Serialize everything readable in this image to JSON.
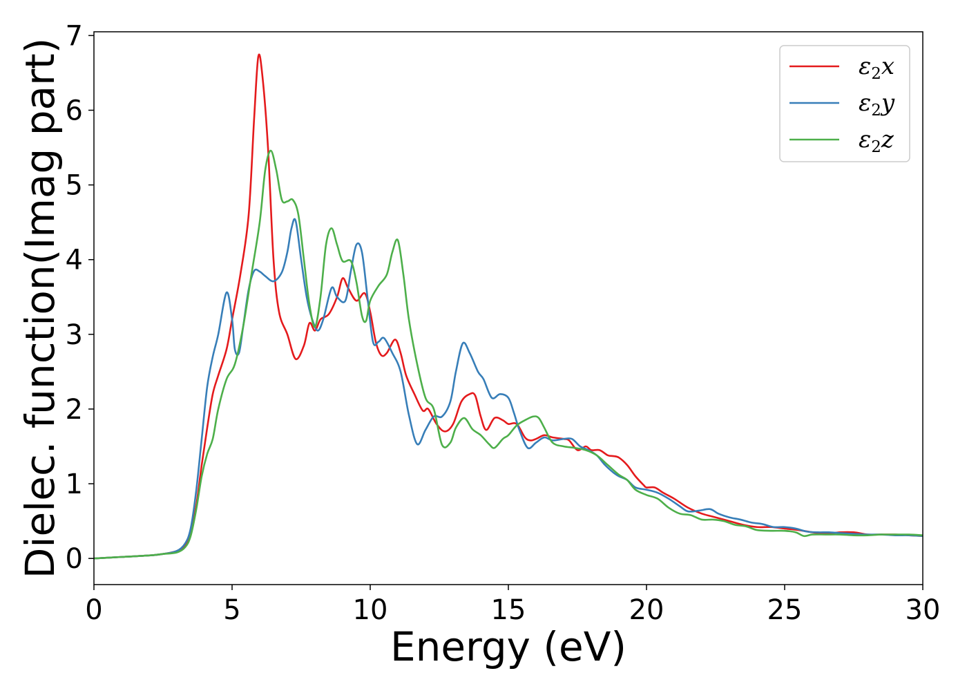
{
  "chart_data": {
    "type": "line",
    "xlabel": "Energy (eV)",
    "ylabel": "Dielec. function(Imag part)",
    "xlim": [
      0,
      30
    ],
    "ylim": [
      -0.35,
      7.05
    ],
    "xticks": [
      0,
      5,
      10,
      15,
      20,
      25,
      30
    ],
    "yticks": [
      0,
      1,
      2,
      3,
      4,
      5,
      6,
      7
    ],
    "grid": false,
    "legend_position": "top-right",
    "series": [
      {
        "name": "ε₂x",
        "legend_base": "ε",
        "legend_sub": "2",
        "legend_tail": "x",
        "color": "#e41a1c",
        "x": [
          0,
          1,
          2,
          2.5,
          3,
          3.3,
          3.5,
          3.7,
          3.9,
          4.1,
          4.3,
          4.5,
          4.8,
          5,
          5.3,
          5.6,
          5.8,
          5.95,
          6.1,
          6.3,
          6.5,
          6.7,
          7,
          7.3,
          7.6,
          7.8,
          8,
          8.2,
          8.5,
          8.8,
          9,
          9.2,
          9.5,
          9.8,
          10,
          10.2,
          10.4,
          10.6,
          10.9,
          11.1,
          11.3,
          11.6,
          11.9,
          12.1,
          12.4,
          12.7,
          13,
          13.3,
          13.6,
          13.8,
          14,
          14.2,
          14.5,
          14.8,
          15,
          15.3,
          15.6,
          15.8,
          16,
          16.3,
          16.6,
          17,
          17.2,
          17.5,
          17.8,
          18,
          18.3,
          18.6,
          18.8,
          19,
          19.3,
          19.6,
          19.9,
          20,
          20.3,
          20.6,
          21,
          21.5,
          22,
          22.5,
          23,
          23.5,
          24,
          24.5,
          25,
          25.5,
          26,
          26.5,
          27,
          27.5,
          28,
          28.5,
          29,
          29.5,
          30
        ],
        "y": [
          0,
          0.02,
          0.04,
          0.06,
          0.1,
          0.18,
          0.35,
          0.7,
          1.25,
          1.75,
          2.2,
          2.45,
          2.8,
          3.2,
          3.8,
          4.6,
          5.9,
          6.72,
          6.45,
          5.5,
          4.0,
          3.3,
          3.0,
          2.67,
          2.85,
          3.15,
          3.05,
          3.2,
          3.27,
          3.5,
          3.75,
          3.62,
          3.45,
          3.55,
          3.3,
          2.9,
          2.72,
          2.75,
          2.93,
          2.75,
          2.45,
          2.2,
          1.98,
          2.0,
          1.8,
          1.7,
          1.8,
          2.1,
          2.2,
          2.18,
          1.9,
          1.72,
          1.88,
          1.85,
          1.8,
          1.8,
          1.62,
          1.58,
          1.6,
          1.65,
          1.62,
          1.6,
          1.58,
          1.45,
          1.5,
          1.45,
          1.45,
          1.38,
          1.37,
          1.35,
          1.25,
          1.1,
          0.98,
          0.95,
          0.95,
          0.88,
          0.8,
          0.68,
          0.6,
          0.55,
          0.5,
          0.45,
          0.42,
          0.42,
          0.4,
          0.38,
          0.35,
          0.33,
          0.35,
          0.35,
          0.32,
          0.32,
          0.32,
          0.31,
          0.3
        ]
      },
      {
        "name": "ε₂y",
        "legend_base": "ε",
        "legend_sub": "2",
        "legend_tail": "y",
        "color": "#377eb8",
        "x": [
          0,
          1,
          2,
          2.5,
          3,
          3.3,
          3.5,
          3.7,
          3.9,
          4.1,
          4.3,
          4.5,
          4.8,
          5,
          5.1,
          5.25,
          5.4,
          5.6,
          5.8,
          6,
          6.2,
          6.5,
          6.8,
          7,
          7.15,
          7.3,
          7.5,
          7.7,
          7.9,
          8.1,
          8.3,
          8.6,
          8.8,
          9.1,
          9.3,
          9.5,
          9.7,
          9.9,
          10.1,
          10.3,
          10.5,
          10.8,
          11.1,
          11.4,
          11.7,
          12,
          12.3,
          12.6,
          12.9,
          13.1,
          13.35,
          13.6,
          13.9,
          14.1,
          14.4,
          14.7,
          15,
          15.2,
          15.4,
          15.7,
          16,
          16.3,
          16.6,
          17,
          17.3,
          17.6,
          17.9,
          18.2,
          18.5,
          18.8,
          19,
          19.3,
          19.6,
          20,
          20.4,
          20.8,
          21.2,
          21.5,
          21.9,
          22.3,
          22.6,
          23,
          23.4,
          23.8,
          24.2,
          24.6,
          25,
          25.4,
          25.8,
          26.2,
          26.6,
          27,
          27.5,
          28,
          28.5,
          29,
          29.5,
          30
        ],
        "y": [
          0,
          0.02,
          0.04,
          0.06,
          0.1,
          0.2,
          0.4,
          0.9,
          1.6,
          2.3,
          2.7,
          3.0,
          3.56,
          3.2,
          2.8,
          2.75,
          3.1,
          3.6,
          3.85,
          3.84,
          3.78,
          3.71,
          3.83,
          4.1,
          4.42,
          4.52,
          4.0,
          3.5,
          3.2,
          3.05,
          3.2,
          3.62,
          3.5,
          3.45,
          3.85,
          4.2,
          4.1,
          3.5,
          2.9,
          2.9,
          2.95,
          2.75,
          2.5,
          1.92,
          1.53,
          1.72,
          1.9,
          1.9,
          2.1,
          2.5,
          2.88,
          2.75,
          2.5,
          2.4,
          2.15,
          2.2,
          2.15,
          1.95,
          1.72,
          1.48,
          1.55,
          1.62,
          1.58,
          1.6,
          1.6,
          1.5,
          1.45,
          1.38,
          1.25,
          1.15,
          1.1,
          1.05,
          0.95,
          0.92,
          0.88,
          0.8,
          0.7,
          0.63,
          0.64,
          0.66,
          0.6,
          0.55,
          0.52,
          0.48,
          0.46,
          0.42,
          0.42,
          0.4,
          0.36,
          0.35,
          0.35,
          0.34,
          0.33,
          0.32,
          0.32,
          0.31,
          0.31,
          0.3
        ]
      },
      {
        "name": "ε₂z",
        "legend_base": "ε",
        "legend_sub": "2",
        "legend_tail": "z",
        "color": "#4daf4a",
        "x": [
          0,
          1,
          2,
          2.5,
          3,
          3.3,
          3.5,
          3.7,
          3.9,
          4.1,
          4.3,
          4.5,
          4.8,
          5.1,
          5.4,
          5.7,
          6,
          6.2,
          6.4,
          6.6,
          6.8,
          7,
          7.2,
          7.4,
          7.6,
          7.8,
          8,
          8.2,
          8.4,
          8.6,
          8.8,
          9,
          9.3,
          9.5,
          9.7,
          9.85,
          10,
          10.3,
          10.6,
          10.8,
          11,
          11.2,
          11.4,
          11.7,
          12,
          12.3,
          12.6,
          12.9,
          13.1,
          13.4,
          13.7,
          14,
          14.3,
          14.5,
          14.8,
          15,
          15.3,
          15.6,
          15.9,
          16.1,
          16.3,
          16.6,
          17,
          17.4,
          17.8,
          18.2,
          18.6,
          19,
          19.3,
          19.6,
          20,
          20.4,
          20.8,
          21.2,
          21.6,
          22,
          22.4,
          22.8,
          23.2,
          23.6,
          24,
          24.5,
          25,
          25.4,
          25.7,
          26,
          26.5,
          27,
          27.5,
          28,
          28.5,
          29,
          29.5,
          30
        ],
        "y": [
          0,
          0.02,
          0.04,
          0.06,
          0.08,
          0.15,
          0.3,
          0.65,
          1.1,
          1.4,
          1.6,
          2.0,
          2.4,
          2.6,
          3.1,
          3.8,
          4.5,
          5.2,
          5.46,
          5.2,
          4.8,
          4.78,
          4.8,
          4.6,
          4.0,
          3.4,
          3.1,
          3.5,
          4.2,
          4.42,
          4.2,
          3.98,
          3.98,
          3.7,
          3.25,
          3.18,
          3.45,
          3.65,
          3.8,
          4.1,
          4.26,
          3.8,
          3.2,
          2.6,
          2.15,
          2.0,
          1.52,
          1.55,
          1.75,
          1.88,
          1.73,
          1.65,
          1.53,
          1.48,
          1.6,
          1.65,
          1.78,
          1.85,
          1.9,
          1.88,
          1.75,
          1.55,
          1.5,
          1.48,
          1.45,
          1.38,
          1.25,
          1.12,
          1.05,
          0.92,
          0.85,
          0.8,
          0.68,
          0.6,
          0.58,
          0.52,
          0.52,
          0.5,
          0.45,
          0.43,
          0.38,
          0.37,
          0.37,
          0.35,
          0.3,
          0.32,
          0.32,
          0.32,
          0.31,
          0.31,
          0.32,
          0.32,
          0.32,
          0.31
        ]
      }
    ]
  }
}
